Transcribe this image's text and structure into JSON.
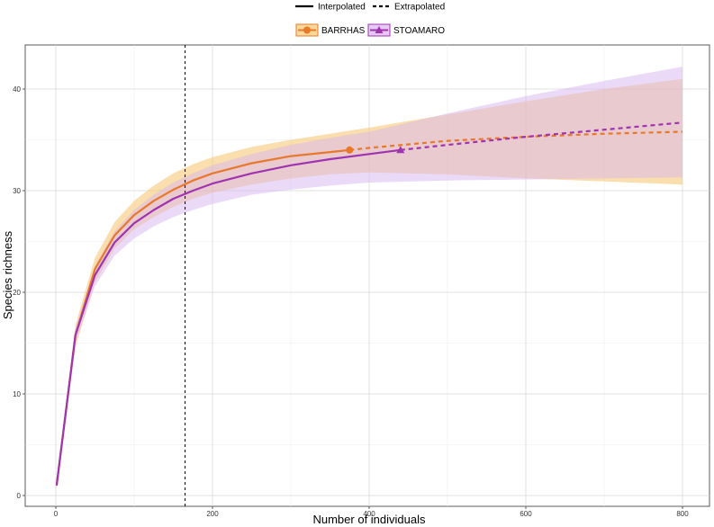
{
  "chart_data": {
    "type": "line",
    "title": "",
    "xlabel": "Number of individuals",
    "ylabel": "Species richness",
    "xlim": [
      -20,
      820
    ],
    "ylim": [
      -0.4,
      44.5
    ],
    "grid": true,
    "x_ticks": [
      0,
      200,
      400,
      600,
      800
    ],
    "y_ticks": [
      0,
      10,
      20,
      30,
      40
    ],
    "reference_line": {
      "x": 165,
      "style": "dashed",
      "color": "#000000"
    },
    "line_type_legend": {
      "interpolated": "Interpolated",
      "extrapolated": "Extrapolated"
    },
    "legend_placement": "top",
    "series": [
      {
        "name": "BARRHAS",
        "color": "#e8782a",
        "band_color": "#f5c26b",
        "marker": "circle",
        "reference_sample": {
          "x": 375,
          "y": 34.0
        },
        "interpolated": [
          [
            1,
            1
          ],
          [
            25,
            15.8
          ],
          [
            50,
            22.3
          ],
          [
            75,
            25.6
          ],
          [
            100,
            27.6
          ],
          [
            125,
            29.0
          ],
          [
            150,
            30.1
          ],
          [
            175,
            31.0
          ],
          [
            200,
            31.7
          ],
          [
            250,
            32.7
          ],
          [
            300,
            33.4
          ],
          [
            350,
            33.8
          ],
          [
            375,
            34.0
          ]
        ],
        "extrapolated": [
          [
            375,
            34.0
          ],
          [
            400,
            34.2
          ],
          [
            500,
            34.9
          ],
          [
            600,
            35.3
          ],
          [
            700,
            35.6
          ],
          [
            800,
            35.8
          ]
        ],
        "band_upper": [
          [
            1,
            1.4
          ],
          [
            25,
            16.8
          ],
          [
            50,
            23.4
          ],
          [
            75,
            26.9
          ],
          [
            100,
            29.0
          ],
          [
            125,
            30.5
          ],
          [
            150,
            31.7
          ],
          [
            175,
            32.6
          ],
          [
            200,
            33.3
          ],
          [
            250,
            34.3
          ],
          [
            300,
            35.0
          ],
          [
            350,
            35.6
          ],
          [
            400,
            36.2
          ],
          [
            500,
            37.5
          ],
          [
            600,
            38.8
          ],
          [
            700,
            40.0
          ],
          [
            800,
            41.0
          ]
        ],
        "band_lower": [
          [
            1,
            0.6
          ],
          [
            25,
            14.6
          ],
          [
            50,
            21.0
          ],
          [
            75,
            24.3
          ],
          [
            100,
            26.2
          ],
          [
            125,
            27.4
          ],
          [
            150,
            28.4
          ],
          [
            175,
            29.2
          ],
          [
            200,
            29.8
          ],
          [
            250,
            30.6
          ],
          [
            300,
            31.2
          ],
          [
            350,
            31.6
          ],
          [
            400,
            31.8
          ],
          [
            500,
            31.6
          ],
          [
            600,
            31.2
          ],
          [
            700,
            30.9
          ],
          [
            800,
            30.6
          ]
        ]
      },
      {
        "name": "STOAMARO",
        "color": "#a033b0",
        "band_color": "#d8b5f0",
        "marker": "triangle",
        "reference_sample": {
          "x": 440,
          "y": 34.0
        },
        "interpolated": [
          [
            1,
            1
          ],
          [
            25,
            15.8
          ],
          [
            50,
            21.7
          ],
          [
            75,
            24.9
          ],
          [
            100,
            26.8
          ],
          [
            125,
            28.1
          ],
          [
            150,
            29.2
          ],
          [
            175,
            30.0
          ],
          [
            200,
            30.7
          ],
          [
            250,
            31.7
          ],
          [
            300,
            32.5
          ],
          [
            350,
            33.1
          ],
          [
            400,
            33.6
          ],
          [
            440,
            34.0
          ]
        ],
        "extrapolated": [
          [
            440,
            34.0
          ],
          [
            500,
            34.5
          ],
          [
            600,
            35.3
          ],
          [
            700,
            36.0
          ],
          [
            800,
            36.7
          ]
        ],
        "band_upper": [
          [
            1,
            1.4
          ],
          [
            25,
            16.5
          ],
          [
            50,
            22.6
          ],
          [
            75,
            26.0
          ],
          [
            100,
            28.1
          ],
          [
            125,
            29.6
          ],
          [
            150,
            30.8
          ],
          [
            175,
            31.7
          ],
          [
            200,
            32.5
          ],
          [
            250,
            33.6
          ],
          [
            300,
            34.5
          ],
          [
            350,
            35.2
          ],
          [
            400,
            35.8
          ],
          [
            500,
            37.6
          ],
          [
            600,
            39.3
          ],
          [
            700,
            40.8
          ],
          [
            800,
            42.2
          ]
        ],
        "band_lower": [
          [
            1,
            0.6
          ],
          [
            25,
            15.0
          ],
          [
            50,
            20.6
          ],
          [
            75,
            23.6
          ],
          [
            100,
            25.3
          ],
          [
            125,
            26.5
          ],
          [
            150,
            27.4
          ],
          [
            175,
            28.1
          ],
          [
            200,
            28.7
          ],
          [
            250,
            29.6
          ],
          [
            300,
            30.1
          ],
          [
            350,
            30.5
          ],
          [
            400,
            30.8
          ],
          [
            500,
            31.0
          ],
          [
            600,
            31.1
          ],
          [
            700,
            31.2
          ],
          [
            800,
            31.3
          ]
        ]
      }
    ]
  }
}
